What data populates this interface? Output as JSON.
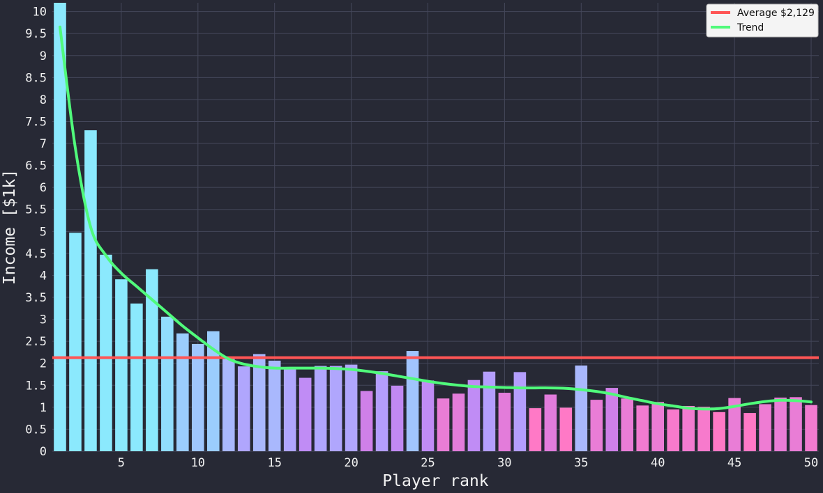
{
  "chart_data": {
    "type": "bar",
    "xlabel": "Player rank",
    "ylabel": "Income [$1k]",
    "xlim": [
      0.5,
      50.5
    ],
    "ylim": [
      0,
      10.2
    ],
    "x_ticks": [
      5,
      10,
      15,
      20,
      25,
      30,
      35,
      40,
      45,
      50
    ],
    "y_ticks": [
      0,
      0.5,
      1,
      1.5,
      2,
      2.5,
      3,
      3.5,
      4,
      4.5,
      5,
      5.5,
      6,
      6.5,
      7,
      7.5,
      8,
      8.5,
      9,
      9.5,
      10
    ],
    "grid": true,
    "legend_position": "top-right",
    "x": [
      1,
      2,
      3,
      4,
      5,
      6,
      7,
      8,
      9,
      10,
      11,
      12,
      13,
      14,
      15,
      16,
      17,
      18,
      19,
      20,
      21,
      22,
      23,
      24,
      25,
      26,
      27,
      28,
      29,
      30,
      31,
      32,
      33,
      34,
      35,
      36,
      37,
      38,
      39,
      40,
      41,
      42,
      43,
      44,
      45,
      46,
      47,
      48,
      49,
      50
    ],
    "values": [
      10.25,
      4.97,
      7.3,
      4.47,
      3.91,
      3.36,
      4.14,
      3.06,
      2.68,
      2.44,
      2.73,
      2.15,
      1.93,
      2.21,
      2.06,
      1.91,
      1.67,
      1.94,
      1.94,
      1.97,
      1.37,
      1.82,
      1.49,
      2.28,
      1.61,
      1.2,
      1.31,
      1.62,
      1.81,
      1.33,
      1.8,
      0.98,
      1.29,
      0.99,
      1.95,
      1.17,
      1.44,
      1.2,
      1.04,
      1.12,
      0.95,
      1.03,
      1.01,
      0.89,
      1.21,
      0.87,
      1.07,
      1.22,
      1.23,
      1.05
    ],
    "bar_colors": [
      "#8be9fd",
      "#8be9fd",
      "#8be9fd",
      "#8be9fd",
      "#8be9fd",
      "#8be9fd",
      "#8be9fd",
      "#91ddfd",
      "#9bcdfd",
      "#9fc6fd",
      "#9bcdfd",
      "#a9b8fd",
      "#b0a6fd",
      "#a9b8fd",
      "#a9b8fd",
      "#b0a6fd",
      "#c08cf5",
      "#b0a6fd",
      "#b0a6fd",
      "#b0a6fd",
      "#cf80e8",
      "#b49efd",
      "#c189f2",
      "#a1c4fd",
      "#c08cf5",
      "#e97dd6",
      "#e37cda",
      "#c08cf5",
      "#b49efd",
      "#e37cda",
      "#b49efd",
      "#ff79c6",
      "#e27cdc",
      "#ff79c6",
      "#a9b8fd",
      "#e97dd6",
      "#cf80e8",
      "#e97dd6",
      "#f27bd0",
      "#eb7cd5",
      "#f77acc",
      "#f27bd0",
      "#f77acc",
      "#ff79c6",
      "#e97dd6",
      "#ff79c6",
      "#ee7cd3",
      "#e97dd6",
      "#e97dd6",
      "#f27bd0"
    ],
    "average": {
      "label": "Average $2,129",
      "value": 2.129,
      "color": "#ff5555"
    },
    "trend": {
      "label": "Trend",
      "color": "#50fa7b",
      "x": [
        1,
        2,
        3,
        4,
        5,
        6,
        7,
        8,
        9,
        10,
        11,
        12,
        13,
        14,
        15,
        16,
        17,
        18,
        19,
        20,
        21,
        22,
        23,
        24,
        25,
        26,
        27,
        28,
        29,
        30,
        31,
        32,
        33,
        34,
        35,
        36,
        37,
        38,
        39,
        40,
        41,
        42,
        43,
        44,
        45,
        46,
        47,
        48,
        49,
        50
      ],
      "y": [
        9.65,
        6.9,
        5.1,
        4.45,
        4.05,
        3.75,
        3.45,
        3.15,
        2.85,
        2.58,
        2.32,
        2.1,
        1.98,
        1.92,
        1.89,
        1.89,
        1.89,
        1.89,
        1.88,
        1.86,
        1.82,
        1.77,
        1.71,
        1.65,
        1.59,
        1.54,
        1.5,
        1.47,
        1.46,
        1.45,
        1.44,
        1.44,
        1.44,
        1.43,
        1.4,
        1.36,
        1.3,
        1.22,
        1.15,
        1.08,
        1.03,
        0.98,
        0.96,
        0.97,
        1.02,
        1.08,
        1.13,
        1.16,
        1.15,
        1.12
      ]
    }
  }
}
